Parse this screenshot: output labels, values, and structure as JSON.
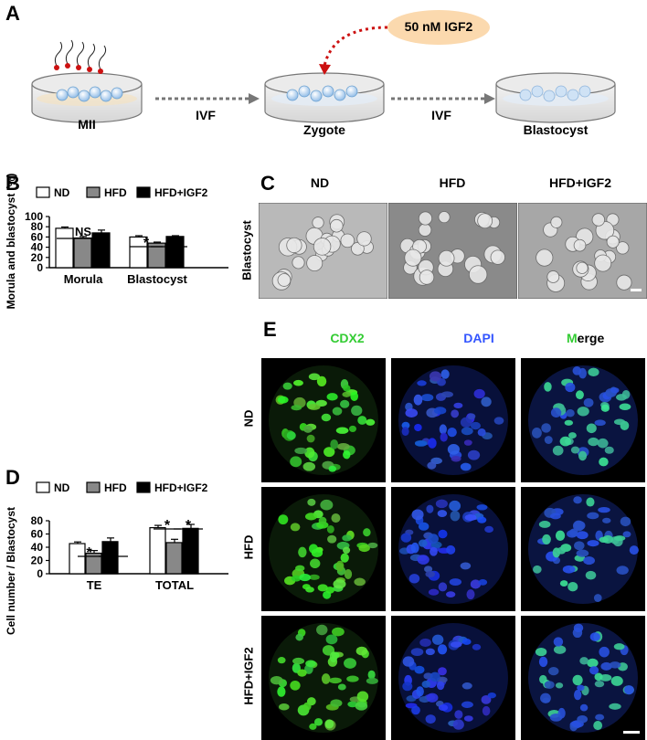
{
  "panelA": {
    "label": "A",
    "dishes": [
      "MII",
      "Zygote",
      "Blastocyst"
    ],
    "arrows": [
      "IVF",
      "IVF"
    ],
    "treatment": "50 nM IGF2"
  },
  "panelB": {
    "label": "B",
    "legend": [
      "ND",
      "HFD",
      "HFD+IGF2"
    ],
    "significance": [
      "NS",
      "*",
      "*"
    ]
  },
  "panelC": {
    "label": "C",
    "row_label": "Blastocyst",
    "columns": [
      "ND",
      "HFD",
      "HFD+IGF2"
    ]
  },
  "panelD": {
    "label": "D",
    "legend": [
      "ND",
      "HFD",
      "HFD+IGF2"
    ],
    "significance": [
      "*",
      "*",
      "*",
      "*"
    ]
  },
  "panelE": {
    "label": "E",
    "columns": [
      {
        "text": "CDX2",
        "color": "#33cc33"
      },
      {
        "text": "DAPI",
        "color": "#3355ff"
      },
      {
        "text": "Merge",
        "color": "#000000",
        "first_letter_color": "#33cc33"
      }
    ],
    "rows": [
      "ND",
      "HFD",
      "HFD+IGF2"
    ]
  },
  "chart_data": [
    {
      "type": "bar",
      "panel": "B",
      "categories": [
        "Morula",
        "Blastocyst"
      ],
      "series": [
        {
          "name": "ND",
          "values": [
            77,
            60
          ],
          "errors": [
            2.5,
            2.5
          ],
          "color": "#ffffff"
        },
        {
          "name": "HFD",
          "values": [
            58,
            48
          ],
          "errors": [
            3,
            2
          ],
          "color": "#888888"
        },
        {
          "name": "HFD+IGF2",
          "values": [
            68,
            61
          ],
          "errors": [
            5.5,
            1.5
          ],
          "color": "#000000"
        }
      ],
      "ylabel": "Morula and blastocyst (%)",
      "ylim": [
        0,
        100
      ],
      "yticks": [
        0,
        20,
        40,
        60,
        80,
        100
      ],
      "legend_placement": "top"
    },
    {
      "type": "bar",
      "panel": "D",
      "categories": [
        "TE",
        "TOTAL"
      ],
      "series": [
        {
          "name": "ND",
          "values": [
            45.5,
            69.5
          ],
          "errors": [
            2.5,
            3.5
          ],
          "color": "#ffffff"
        },
        {
          "name": "HFD",
          "values": [
            31,
            47
          ],
          "errors": [
            4,
            5
          ],
          "color": "#888888"
        },
        {
          "name": "HFD+IGF2",
          "values": [
            48.5,
            68.5
          ],
          "errors": [
            5.5,
            6
          ],
          "color": "#000000"
        }
      ],
      "ylabel": "Cell number / Blastocyst",
      "ylim": [
        0,
        80
      ],
      "yticks": [
        0,
        20,
        40,
        60,
        80
      ],
      "legend_placement": "top"
    }
  ]
}
